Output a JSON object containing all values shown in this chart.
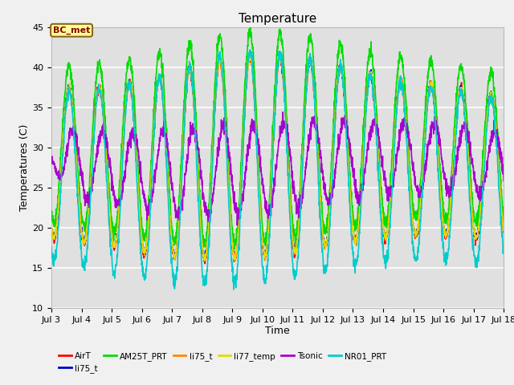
{
  "title": "Temperature",
  "xlabel": "Time",
  "ylabel": "Temperatures (C)",
  "ylim": [
    10,
    45
  ],
  "xlim_days": [
    3,
    18
  ],
  "fig_bg_color": "#f0f0f0",
  "plot_bg_color": "#e0e0e0",
  "grid_color": "white",
  "annotation_text": "BC_met",
  "annotation_color": "#8B0000",
  "annotation_bg": "#FFFF99",
  "annotation_edge": "#8B6914",
  "series": [
    {
      "label": "AirT",
      "color": "#ff0000",
      "lw": 1.2
    },
    {
      "label": "li75_t",
      "color": "#0000cc",
      "lw": 1.2
    },
    {
      "label": "AM25T_PRT",
      "color": "#00dd00",
      "lw": 1.2
    },
    {
      "label": "li75_t",
      "color": "#ff8800",
      "lw": 1.2
    },
    {
      "label": "li77_temp",
      "color": "#dddd00",
      "lw": 1.2
    },
    {
      "label": "Tsonic",
      "color": "#aa00cc",
      "lw": 1.2
    },
    {
      "label": "NR01_PRT",
      "color": "#00cccc",
      "lw": 1.2
    }
  ],
  "tick_labels": [
    "Jul 3",
    "Jul 4",
    "Jul 5",
    "Jul 6",
    "Jul 7",
    "Jul 8",
    "Jul 9",
    "Jul 10",
    "Jul 11",
    "Jul 12",
    "Jul 13",
    "Jul 14",
    "Jul 15",
    "Jul 16",
    "Jul 17",
    "Jul 18"
  ],
  "yticks": [
    10,
    15,
    20,
    25,
    30,
    35,
    40,
    45
  ],
  "title_fontsize": 11,
  "label_fontsize": 9,
  "tick_fontsize": 8
}
